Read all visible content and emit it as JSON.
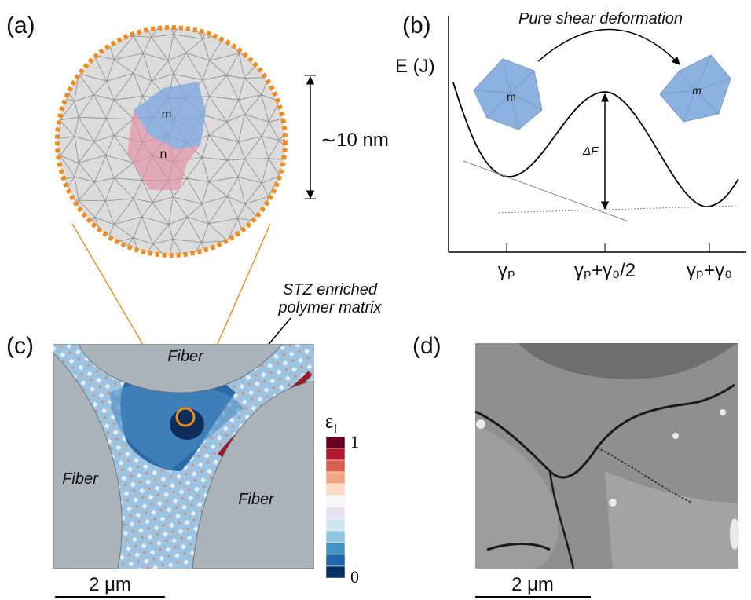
{
  "panel_a": {
    "label": "(a)",
    "region_m": "m",
    "region_n": "n",
    "scale": "∼10 nm"
  },
  "panel_b": {
    "label": "(b)",
    "arrow_label": "Pure shear deformation",
    "y_label": "E (J)",
    "left_region": "m",
    "right_region": "m",
    "barrier": "ΔF",
    "x_labels": [
      "γₚ",
      "γₚ+γ₀/2",
      "γₚ+γ₀"
    ]
  },
  "panel_c": {
    "label": "(c)",
    "annotation": [
      "STZ enriched",
      "polymer matrix"
    ],
    "regions": [
      "Fiber",
      "Fiber",
      "Fiber"
    ],
    "colorbar": {
      "symbol": "ε",
      "subscript": "I",
      "max": "1",
      "min": "0"
    },
    "scale": "2 μm"
  },
  "panel_d": {
    "label": "(d)",
    "scale": "2 μm"
  }
}
